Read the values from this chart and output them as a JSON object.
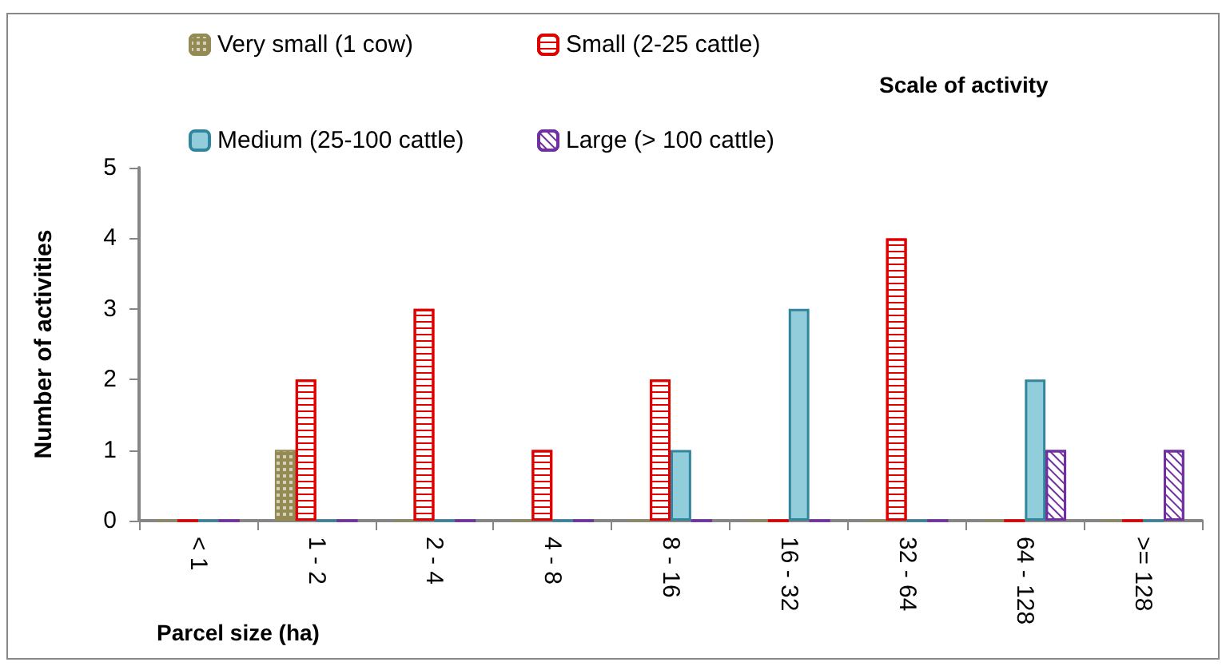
{
  "chart_data": {
    "type": "bar",
    "xlabel": "Parcel size (ha)",
    "ylabel": "Number of activities",
    "legend_title": "Scale of activity",
    "categories": [
      "< 1",
      "1 - 2",
      "2 - 4",
      "4 - 8",
      "8 - 16",
      "16 - 32",
      "32 - 64",
      "64 - 128",
      ">= 128"
    ],
    "series": [
      {
        "name": "Very small (1 cow)",
        "color": "#948a54",
        "values": [
          0,
          1,
          0,
          0,
          0,
          0,
          0,
          0,
          0
        ]
      },
      {
        "name": "Small (2-25 cattle)",
        "color": "#e00000",
        "values": [
          0,
          2,
          3,
          1,
          2,
          0,
          4,
          0,
          0
        ]
      },
      {
        "name": "Medium (25-100 cattle)",
        "color": "#31859c",
        "values": [
          0,
          0,
          0,
          0,
          1,
          3,
          0,
          2,
          0
        ]
      },
      {
        "name": "Large (> 100 cattle)",
        "color": "#7030a0",
        "values": [
          0,
          0,
          0,
          0,
          0,
          0,
          0,
          1,
          1
        ]
      }
    ],
    "ylim": [
      0,
      5
    ],
    "yticks": [
      0,
      1,
      2,
      3,
      4,
      5
    ],
    "grid": false,
    "legend": "top left"
  }
}
